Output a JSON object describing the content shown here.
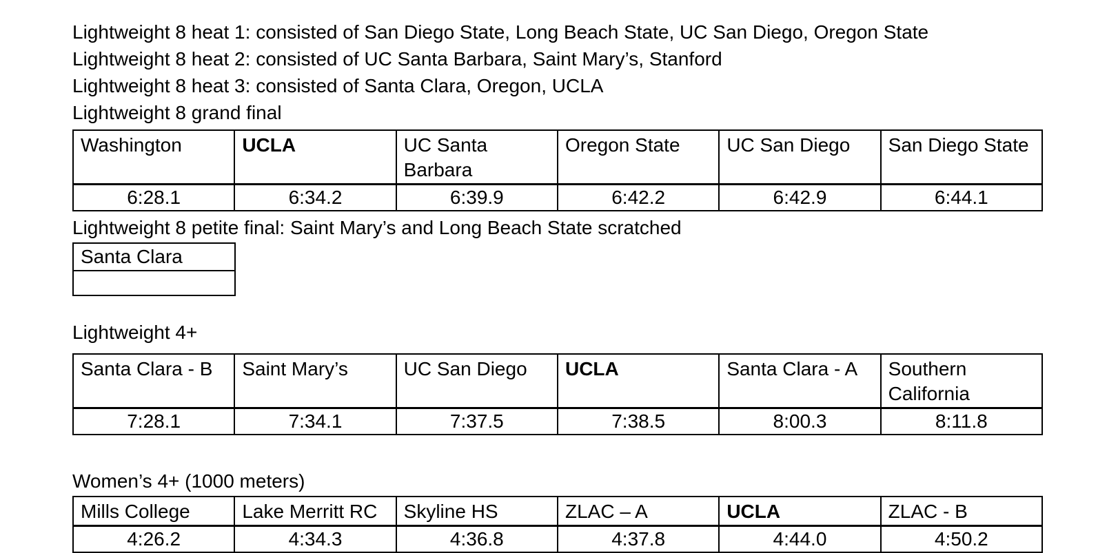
{
  "page": {
    "background": "#ffffff",
    "text_color": "#000000",
    "table_border_color": "#000000"
  },
  "heats": {
    "heat1": "Lightweight 8 heat 1: consisted of San Diego State, Long Beach State, UC San Diego, Oregon State",
    "heat2": "Lightweight 8 heat 2: consisted of UC Santa Barbara, Saint Mary’s, Stanford",
    "heat3": "Lightweight 8 heat 3: consisted of Santa Clara, Oregon, UCLA"
  },
  "grand_final": {
    "heading": "Lightweight 8 grand final",
    "columns": [
      {
        "team": "Washington",
        "time": "6:28.1",
        "bold": false
      },
      {
        "team": "UCLA",
        "time": "6:34.2",
        "bold": true
      },
      {
        "team": "UC Santa Barbara",
        "time": "6:39.9",
        "bold": false
      },
      {
        "team": "Oregon State",
        "time": "6:42.2",
        "bold": false
      },
      {
        "team": "UC San Diego",
        "time": "6:42.9",
        "bold": false
      },
      {
        "team": "San Diego State",
        "time": "6:44.1",
        "bold": false
      }
    ]
  },
  "petite_final": {
    "heading": "Lightweight 8 petite final: Saint Mary’s and Long Beach State scratched",
    "rows": [
      "Santa Clara",
      ""
    ]
  },
  "lightweight_4": {
    "heading": "Lightweight 4+",
    "columns": [
      {
        "team": "Santa Clara - B",
        "time": "7:28.1",
        "bold": false
      },
      {
        "team": "Saint Mary’s",
        "time": "7:34.1",
        "bold": false
      },
      {
        "team": "UC San Diego",
        "time": "7:37.5",
        "bold": false
      },
      {
        "team": "UCLA",
        "time": "7:38.5",
        "bold": true
      },
      {
        "team": "Santa Clara - A",
        "time": "8:00.3",
        "bold": false
      },
      {
        "team": "Southern California",
        "time": "8:11.8",
        "bold": false
      }
    ]
  },
  "womens_4": {
    "heading": "Women’s 4+ (1000 meters)",
    "columns": [
      {
        "team": "Mills College",
        "time": "4:26.2",
        "bold": false
      },
      {
        "team": "Lake Merritt RC",
        "time": "4:34.3",
        "bold": false
      },
      {
        "team": "Skyline HS",
        "time": "4:36.8",
        "bold": false
      },
      {
        "team": "ZLAC – A",
        "time": "4:37.8",
        "bold": false
      },
      {
        "team": "UCLA",
        "time": "4:44.0",
        "bold": true
      },
      {
        "team": "ZLAC - B",
        "time": "4:50.2",
        "bold": false
      }
    ]
  }
}
